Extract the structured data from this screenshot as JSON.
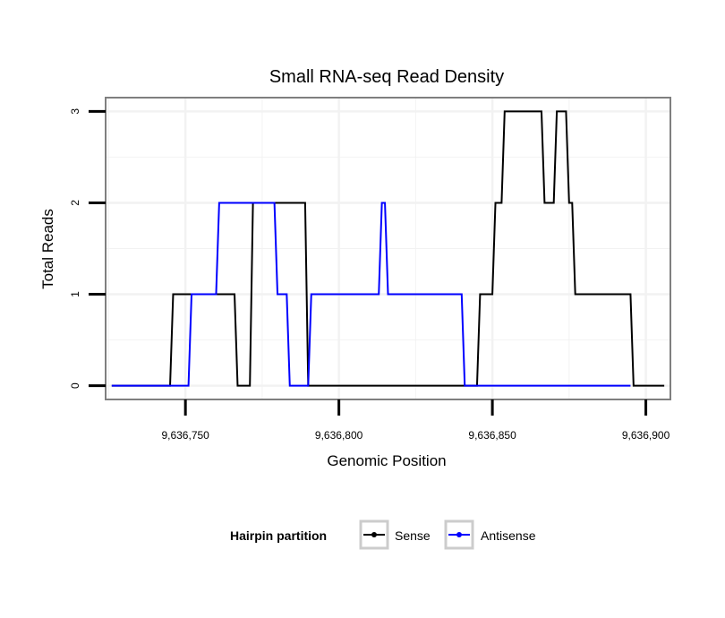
{
  "chart_data": {
    "type": "line",
    "title": "Small RNA-seq Read Density",
    "xlabel": "Genomic Position",
    "ylabel": "Total Reads",
    "xlim": [
      9636724,
      9636908
    ],
    "ylim": [
      -0.15,
      3.15
    ],
    "x_ticks": [
      9636750,
      9636800,
      9636850,
      9636900
    ],
    "x_tick_labels": [
      "9,636,750",
      "9,636,800",
      "9,636,850",
      "9,636,900"
    ],
    "y_ticks": [
      0,
      1,
      2,
      3
    ],
    "y_tick_labels": [
      "0",
      "1",
      "2",
      "3"
    ],
    "grid": true,
    "legend": {
      "title": "Hairpin partition",
      "position": "bottom"
    },
    "series": [
      {
        "name": "Sense",
        "color": "#000000",
        "x": [
          9636726,
          9636745,
          9636746,
          9636766,
          9636767,
          9636771,
          9636772,
          9636789,
          9636790,
          9636845,
          9636846,
          9636850,
          9636851,
          9636853,
          9636854,
          9636866,
          9636867,
          9636870,
          9636871,
          9636874,
          9636875,
          9636876,
          9636877,
          9636895,
          9636896,
          9636906
        ],
        "values": [
          0,
          0,
          1,
          1,
          0,
          0,
          2,
          2,
          0,
          0,
          1,
          1,
          2,
          2,
          3,
          3,
          2,
          2,
          3,
          3,
          2,
          2,
          1,
          1,
          0,
          0
        ]
      },
      {
        "name": "Antisense",
        "color": "#0000ff",
        "x": [
          9636726,
          9636751,
          9636752,
          9636760,
          9636761,
          9636779,
          9636780,
          9636783,
          9636784,
          9636790,
          9636791,
          9636813,
          9636814,
          9636815,
          9636816,
          9636840,
          9636841,
          9636895
        ],
        "values": [
          0,
          0,
          1,
          1,
          2,
          2,
          1,
          1,
          0,
          0,
          1,
          1,
          2,
          2,
          1,
          1,
          0,
          0
        ]
      }
    ]
  }
}
